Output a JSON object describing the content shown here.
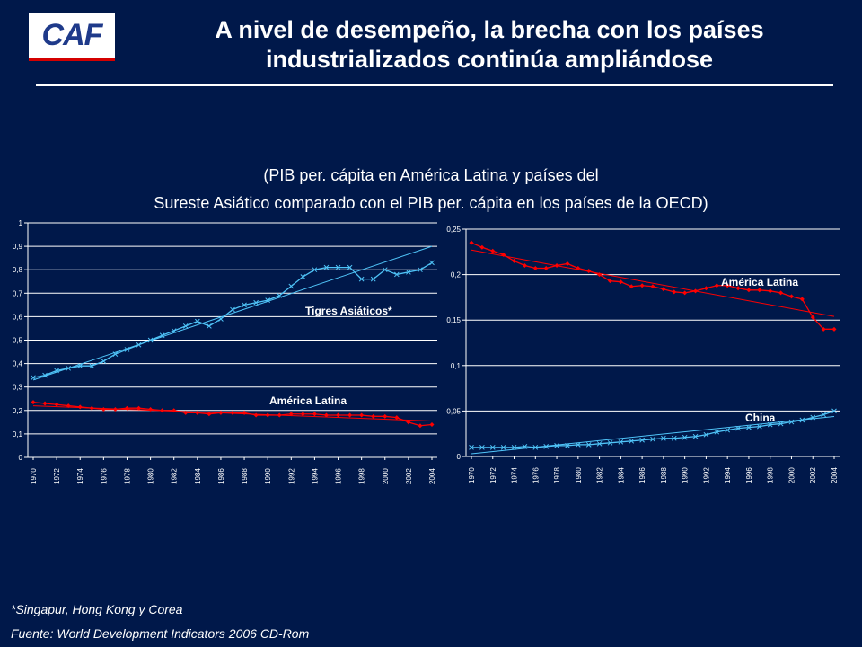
{
  "header": {
    "logo_text": "CAF",
    "title_line1": "A nivel de desempeño, la brecha con los países",
    "title_line2": "industrializados continúa ampliándose"
  },
  "subtitle": {
    "line1": "(PIB per. cápita en América Latina y países del",
    "line2": "Sureste Asiático comparado con el PIB per. cápita en los países de la OECD)"
  },
  "footer": {
    "footnote": "*Singapur, Hong Kong y Corea",
    "source": "Fuente: World Development Indicators 2006 CD-Rom"
  },
  "colors": {
    "background": "#00184a",
    "tigres": "#4fc3f7",
    "america_latina": "#ff0000",
    "china": "#4fc3f7",
    "trend": "#ffffff"
  },
  "chart_data": [
    {
      "type": "line",
      "ylim": [
        0,
        1
      ],
      "yticks": [
        "0",
        "0,1",
        "0,2",
        "0,3",
        "0,4",
        "0,5",
        "0,6",
        "0,7",
        "0,8",
        "0,9",
        "1"
      ],
      "xticks": [
        "1970",
        "1972",
        "1974",
        "1976",
        "1978",
        "1980",
        "1982",
        "1984",
        "1986",
        "1988",
        "1990",
        "1992",
        "1994",
        "1996",
        "1998",
        "2000",
        "2002",
        "2004"
      ],
      "grid": true,
      "x": [
        1970,
        1971,
        1972,
        1973,
        1974,
        1975,
        1976,
        1977,
        1978,
        1979,
        1980,
        1981,
        1982,
        1983,
        1984,
        1985,
        1986,
        1987,
        1988,
        1989,
        1990,
        1991,
        1992,
        1993,
        1994,
        1995,
        1996,
        1997,
        1998,
        1999,
        2000,
        2001,
        2002,
        2003,
        2004
      ],
      "series": [
        {
          "name": "Tigres Asiáticos*",
          "color": "#4fc3f7",
          "marker": "x",
          "trend": [
            0.33,
            0.9
          ],
          "values": [
            0.34,
            0.35,
            0.37,
            0.38,
            0.39,
            0.39,
            0.41,
            0.44,
            0.46,
            0.48,
            0.5,
            0.52,
            0.54,
            0.56,
            0.58,
            0.56,
            0.59,
            0.63,
            0.65,
            0.66,
            0.67,
            0.69,
            0.73,
            0.77,
            0.8,
            0.81,
            0.81,
            0.81,
            0.76,
            0.76,
            0.8,
            0.78,
            0.79,
            0.8,
            0.83
          ]
        },
        {
          "name": "América Latina",
          "color": "#ff0000",
          "marker": "diamond",
          "trend": [
            0.22,
            0.155
          ],
          "values": [
            0.235,
            0.23,
            0.225,
            0.22,
            0.215,
            0.21,
            0.205,
            0.205,
            0.21,
            0.21,
            0.205,
            0.2,
            0.2,
            0.19,
            0.19,
            0.185,
            0.19,
            0.19,
            0.19,
            0.18,
            0.18,
            0.18,
            0.185,
            0.185,
            0.185,
            0.18,
            0.18,
            0.18,
            0.18,
            0.175,
            0.175,
            0.17,
            0.15,
            0.135,
            0.14
          ]
        }
      ]
    },
    {
      "type": "line",
      "ylim": [
        0,
        0.25
      ],
      "yticks": [
        "0",
        "0,05",
        "0,1",
        "0,15",
        "0,2",
        "0,25"
      ],
      "xticks": [
        "1970",
        "1972",
        "1974",
        "1976",
        "1978",
        "1980",
        "1982",
        "1984",
        "1986",
        "1988",
        "1990",
        "1992",
        "1994",
        "1996",
        "1998",
        "2000",
        "2002",
        "2004"
      ],
      "grid": true,
      "x": [
        1970,
        1971,
        1972,
        1973,
        1974,
        1975,
        1976,
        1977,
        1978,
        1979,
        1980,
        1981,
        1982,
        1983,
        1984,
        1985,
        1986,
        1987,
        1988,
        1989,
        1990,
        1991,
        1992,
        1993,
        1994,
        1995,
        1996,
        1997,
        1998,
        1999,
        2000,
        2001,
        2002,
        2003,
        2004
      ],
      "series": [
        {
          "name": "América Latina",
          "color": "#ff0000",
          "marker": "diamond",
          "trend": [
            0.227,
            0.154
          ],
          "values": [
            0.235,
            0.23,
            0.226,
            0.222,
            0.215,
            0.21,
            0.207,
            0.207,
            0.21,
            0.212,
            0.207,
            0.204,
            0.2,
            0.193,
            0.192,
            0.187,
            0.188,
            0.187,
            0.184,
            0.181,
            0.18,
            0.182,
            0.185,
            0.188,
            0.188,
            0.185,
            0.183,
            0.183,
            0.182,
            0.18,
            0.176,
            0.173,
            0.153,
            0.14,
            0.14
          ]
        },
        {
          "name": "China",
          "color": "#4fc3f7",
          "marker": "x",
          "trend": [
            0.003,
            0.044
          ],
          "values": [
            0.01,
            0.01,
            0.01,
            0.01,
            0.01,
            0.011,
            0.01,
            0.011,
            0.012,
            0.012,
            0.013,
            0.013,
            0.014,
            0.015,
            0.016,
            0.017,
            0.018,
            0.019,
            0.02,
            0.02,
            0.021,
            0.022,
            0.024,
            0.027,
            0.029,
            0.031,
            0.032,
            0.033,
            0.035,
            0.036,
            0.038,
            0.04,
            0.043,
            0.046,
            0.05
          ]
        }
      ]
    }
  ]
}
